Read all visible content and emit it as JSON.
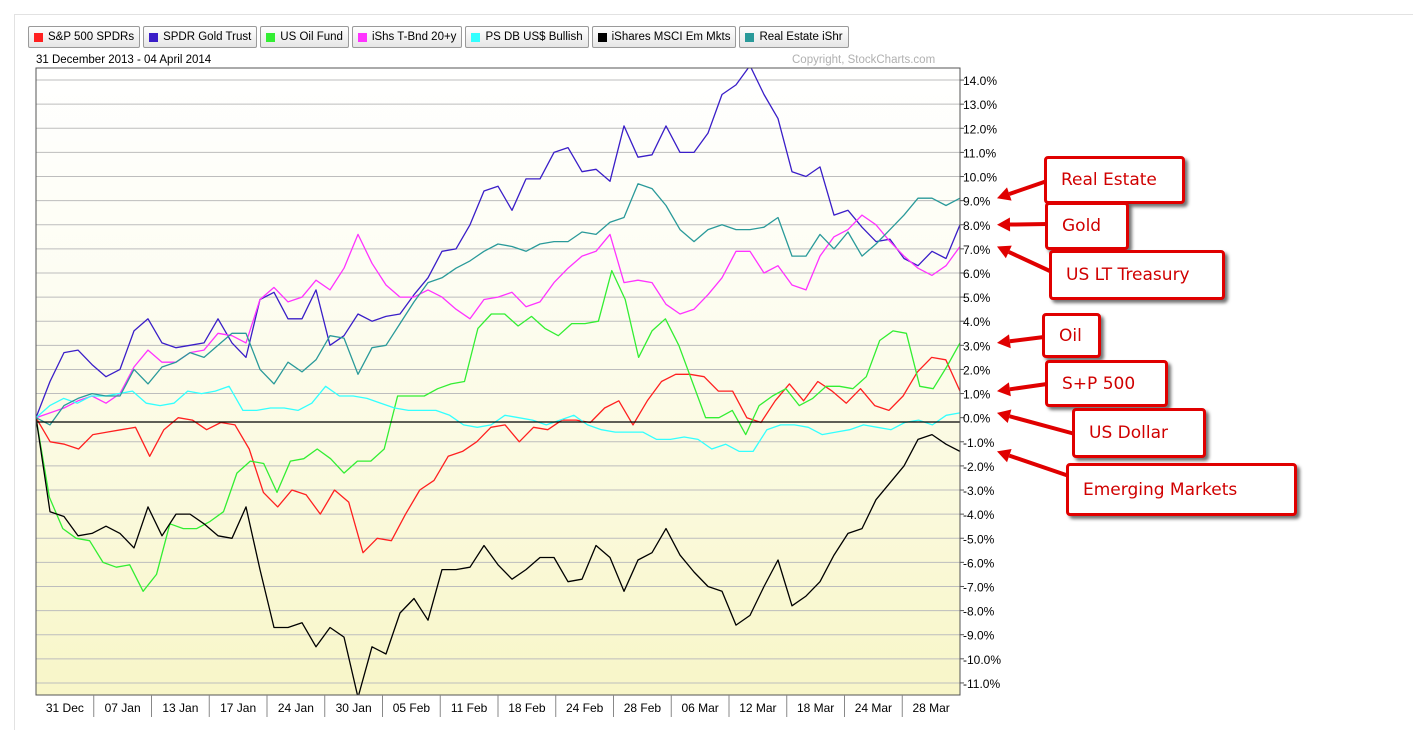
{
  "legend": [
    {
      "label": "S&P 500 SPDRs",
      "color": "#ff2020"
    },
    {
      "label": "SPDR Gold Trust",
      "color": "#3a1ec8"
    },
    {
      "label": "US Oil Fund",
      "color": "#33ee33"
    },
    {
      "label": "iShs T-Bnd 20+y",
      "color": "#ff33ff"
    },
    {
      "label": "PS DB US$ Bullish",
      "color": "#33ffff"
    },
    {
      "label": "iShares MSCI Em Mkts",
      "color": "#000000"
    },
    {
      "label": "Real Estate iShr",
      "color": "#2a9a9a"
    }
  ],
  "date_range": "31 December 2013 - 04 April 2014",
  "copyright": "Copyright, StockCharts.com",
  "callouts": [
    {
      "label": "Real Estate",
      "series": "Real Estate iShr"
    },
    {
      "label": "Gold",
      "series": "SPDR Gold Trust"
    },
    {
      "label": "US LT Treasury",
      "series": "iShs T-Bnd 20+y"
    },
    {
      "label": "Oil",
      "series": "US Oil Fund"
    },
    {
      "label": "S+P 500",
      "series": "S&P 500 SPDRs"
    },
    {
      "label": "US Dollar",
      "series": "PS DB US$ Bullish"
    },
    {
      "label": "Emerging Markets",
      "series": "iShares MSCI Em Mkts"
    }
  ],
  "chart_data": {
    "type": "line",
    "title": "",
    "xlabel": "",
    "ylabel": "",
    "ylim": [
      -11.5,
      14.5
    ],
    "y_ticks": [
      "14.0%",
      "13.0%",
      "12.0%",
      "11.0%",
      "10.0%",
      "9.0%",
      "8.0%",
      "7.0%",
      "6.0%",
      "5.0%",
      "4.0%",
      "3.0%",
      "2.0%",
      "1.0%",
      "0.0%",
      "-1.0%",
      "-2.0%",
      "-3.0%",
      "-4.0%",
      "-5.0%",
      "-6.0%",
      "-7.0%",
      "-8.0%",
      "-9.0%",
      "-10.0%",
      "-11.0%"
    ],
    "x_ticks": [
      "31 Dec",
      "07 Jan",
      "13 Jan",
      "17 Jan",
      "24 Jan",
      "30 Jan",
      "05 Feb",
      "11 Feb",
      "18 Feb",
      "24 Feb",
      "28 Feb",
      "06 Mar",
      "12 Mar",
      "18 Mar",
      "24 Mar",
      "28 Mar"
    ],
    "grid": true,
    "series": [
      {
        "name": "S&P 500 SPDRs",
        "color": "#ff2020",
        "values": [
          0,
          -1,
          -1.1,
          -1.3,
          -0.7,
          -0.6,
          -0.5,
          -0.4,
          -1.6,
          -0.5,
          0,
          -0.1,
          -0.5,
          -0.2,
          -0.3,
          -1.3,
          -3.1,
          -3.7,
          -3,
          -3.2,
          -4,
          -3,
          -3.5,
          -5.6,
          -5,
          -5.1,
          -4,
          -3,
          -2.6,
          -1.6,
          -1.4,
          -1,
          -0.4,
          -0.3,
          -1,
          -0.4,
          -0.5,
          -0.1,
          -0.1,
          -0.2,
          0.4,
          0.7,
          -0.3,
          0.7,
          1.5,
          1.8,
          1.8,
          1.7,
          1.1,
          1.1,
          0,
          -0.2,
          0.7,
          1.4,
          0.7,
          1.5,
          1.1,
          0.6,
          1.2,
          0.5,
          0.3,
          0.9,
          1.9,
          2.5,
          2.4,
          1.1
        ]
      },
      {
        "name": "SPDR Gold Trust",
        "color": "#3a1ec8",
        "values": [
          0,
          1.5,
          2.7,
          2.8,
          2.2,
          1.7,
          2,
          3.6,
          4.1,
          3.1,
          2.9,
          3,
          3.1,
          4.1,
          3.1,
          2.5,
          4.9,
          5.2,
          4.1,
          4.1,
          5.3,
          3,
          3.4,
          4.3,
          4,
          4.2,
          4.3,
          5.1,
          5.8,
          6.9,
          7,
          8,
          9.4,
          9.6,
          8.6,
          9.9,
          9.9,
          11,
          11.2,
          10.2,
          10.3,
          9.8,
          12.1,
          10.8,
          10.9,
          12.1,
          11,
          11,
          11.8,
          13.4,
          13.8,
          14.6,
          13.4,
          12.4,
          10.2,
          10,
          10.4,
          8.4,
          8.6,
          7.9,
          7.3,
          7.4,
          6.6,
          6.3,
          6.9,
          6.6,
          8
        ]
      },
      {
        "name": "US Oil Fund",
        "color": "#33ee33",
        "values": [
          0,
          -3.3,
          -4.6,
          -5,
          -5.1,
          -6,
          -6.2,
          -6.1,
          -7.2,
          -6.5,
          -4.4,
          -4.6,
          -4.6,
          -4.3,
          -3.9,
          -2.3,
          -1.8,
          -1.9,
          -3.1,
          -1.8,
          -1.7,
          -1.3,
          -1.7,
          -2.3,
          -1.8,
          -1.8,
          -1.3,
          0.9,
          0.9,
          0.9,
          1.2,
          1.4,
          1.5,
          3.7,
          4.3,
          4.3,
          3.8,
          4.2,
          3.7,
          3.4,
          3.9,
          3.9,
          4,
          6.1,
          4.9,
          2.5,
          3.6,
          4.1,
          3,
          1.5,
          0,
          0,
          0.3,
          -0.7,
          0.5,
          0.9,
          1.2,
          0.5,
          0.8,
          1.3,
          1.3,
          1.2,
          1.7,
          3.2,
          3.6,
          3.5,
          1.3,
          1.2,
          2.1,
          3.1
        ]
      },
      {
        "name": "iShs T-Bnd 20+y",
        "color": "#ff33ff",
        "values": [
          0,
          0.2,
          0.4,
          0.7,
          0.9,
          0.6,
          1,
          2.1,
          2.8,
          2.3,
          2.3,
          2.7,
          2.8,
          3.5,
          3.4,
          3.1,
          4.9,
          5.4,
          4.8,
          5,
          5.7,
          5.3,
          6.2,
          7.6,
          6.4,
          5.5,
          5,
          5,
          5.3,
          5,
          4.5,
          4.1,
          4.9,
          5,
          5.2,
          4.6,
          4.8,
          5.6,
          6.2,
          6.7,
          6.9,
          7.6,
          5.6,
          5.7,
          5.6,
          4.7,
          4.3,
          4.5,
          5.1,
          5.8,
          6.9,
          6.9,
          6,
          6.3,
          5.5,
          5.3,
          6.7,
          7.5,
          7.8,
          8.4,
          8,
          7.3,
          6.7,
          6.2,
          5.9,
          6.3,
          7.1
        ]
      },
      {
        "name": "PS DB US$ Bullish",
        "color": "#33ffff",
        "values": [
          0,
          0.5,
          0.8,
          0.6,
          0.9,
          0.9,
          1,
          1.1,
          0.6,
          0.5,
          0.6,
          1.1,
          1,
          1.1,
          1.3,
          0.3,
          0.3,
          0.4,
          0.4,
          0.3,
          0.6,
          1.3,
          0.9,
          0.9,
          0.8,
          0.6,
          0.4,
          0.3,
          0.3,
          0.3,
          0.1,
          -0.3,
          -0.4,
          -0.3,
          0.1,
          0,
          -0.1,
          -0.3,
          -0.1,
          0.1,
          -0.3,
          -0.5,
          -0.6,
          -0.6,
          -0.6,
          -0.9,
          -0.9,
          -0.8,
          -0.9,
          -1.3,
          -1.1,
          -1.4,
          -1.4,
          -0.5,
          -0.3,
          -0.3,
          -0.4,
          -0.7,
          -0.6,
          -0.5,
          -0.3,
          -0.4,
          -0.5,
          -0.2,
          -0.1,
          -0.3,
          0.1,
          0.2
        ]
      },
      {
        "name": "iShares MSCI Em Mkts",
        "color": "#000000",
        "values": [
          0,
          -3.9,
          -4.1,
          -4.9,
          -4.8,
          -4.5,
          -4.8,
          -5.4,
          -3.7,
          -4.9,
          -4,
          -4,
          -4.4,
          -4.9,
          -5,
          -3.7,
          -6.3,
          -8.7,
          -8.7,
          -8.5,
          -9.5,
          -8.7,
          -9.1,
          -11.6,
          -9.5,
          -9.8,
          -8.1,
          -7.5,
          -8.4,
          -6.3,
          -6.3,
          -6.2,
          -5.3,
          -6.1,
          -6.7,
          -6.3,
          -5.8,
          -5.8,
          -6.8,
          -6.7,
          -5.3,
          -5.8,
          -7.2,
          -5.9,
          -5.6,
          -4.6,
          -5.7,
          -6.4,
          -7,
          -7.2,
          -8.6,
          -8.2,
          -7,
          -5.9,
          -7.8,
          -7.4,
          -6.8,
          -5.7,
          -4.8,
          -4.6,
          -3.4,
          -2.7,
          -2,
          -0.9,
          -0.7,
          -1.1,
          -1.4
        ]
      },
      {
        "name": "Real Estate iShr",
        "color": "#2a9a9a",
        "values": [
          0,
          -0.3,
          0.5,
          0.8,
          1,
          0.9,
          0.9,
          2,
          1.4,
          2.1,
          2.3,
          2.7,
          2.5,
          3,
          3.5,
          3.5,
          2,
          1.4,
          2.3,
          1.9,
          2.4,
          3.4,
          3.3,
          1.8,
          2.9,
          3,
          3.9,
          4.8,
          5.6,
          5.8,
          6.2,
          6.5,
          6.9,
          7.2,
          7.1,
          6.9,
          7.2,
          7.3,
          7.3,
          7.7,
          7.6,
          8.1,
          8.3,
          9.7,
          9.5,
          8.8,
          7.8,
          7.3,
          7.8,
          8,
          7.8,
          7.8,
          7.9,
          8.3,
          6.7,
          6.7,
          7.6,
          7,
          7.7,
          6.7,
          7.2,
          7.8,
          8.4,
          9.1,
          9.1,
          8.8,
          9.1
        ]
      }
    ]
  }
}
